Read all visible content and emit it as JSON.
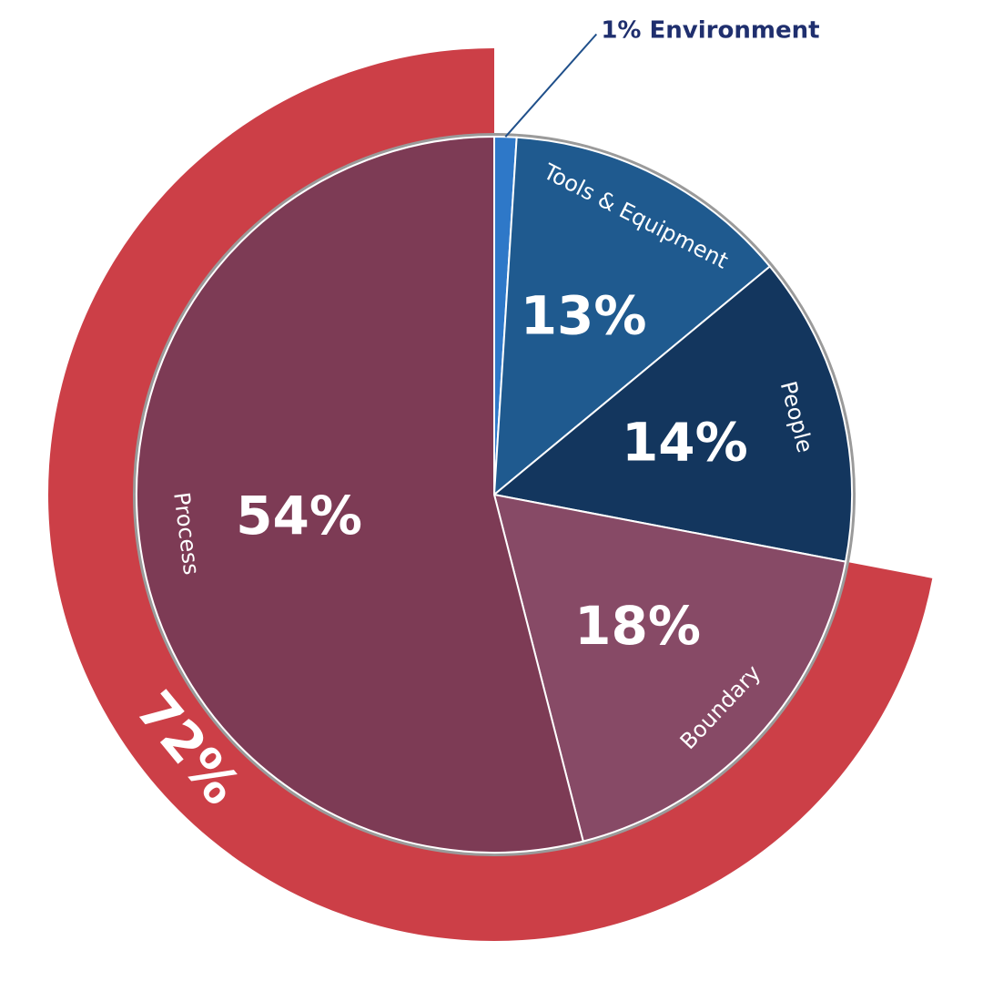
{
  "chart_data": {
    "type": "pie",
    "categories": [
      "Environment",
      "Tools & Equipment",
      "People",
      "Boundary",
      "Process"
    ],
    "values": [
      1,
      13,
      14,
      18,
      54
    ],
    "value_labels": [
      "1%",
      "13%",
      "14%",
      "18%",
      "54%"
    ],
    "colors": [
      "#2e78c8",
      "#1f5a8f",
      "#13365e",
      "#874a66",
      "#7d3b55"
    ],
    "ring": {
      "value": 72,
      "value_label": "72%",
      "color": "#cc3f47"
    }
  }
}
